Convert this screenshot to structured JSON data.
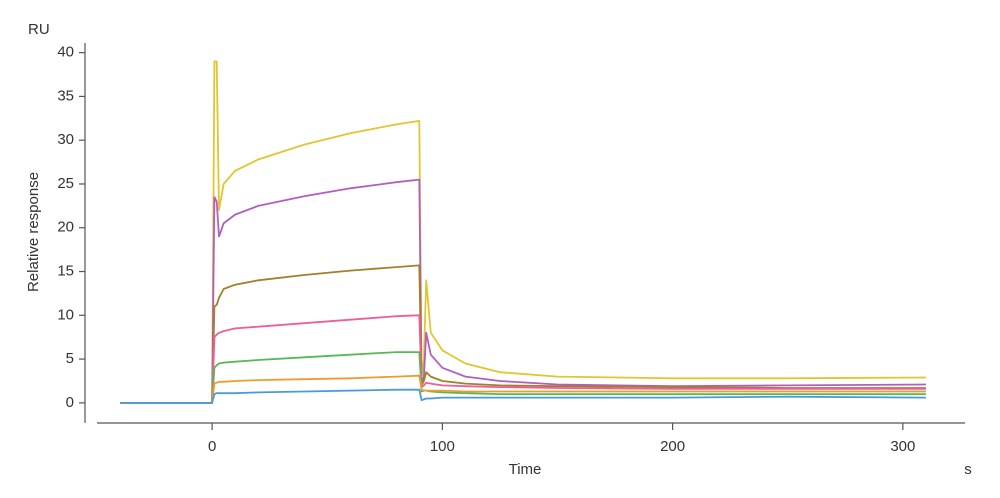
{
  "chart_data": {
    "type": "line",
    "y_unit": "RU",
    "ylabel": "Relative response",
    "xlabel": "Time",
    "x_unit": "s",
    "x": [
      -40,
      -20,
      0,
      1,
      2,
      3,
      5,
      10,
      20,
      40,
      60,
      80,
      90,
      91,
      92,
      93,
      95,
      100,
      110,
      125,
      150,
      200,
      250,
      310
    ],
    "series": [
      {
        "color": "#e3c530",
        "values": [
          0,
          0,
          0,
          39,
          39,
          22,
          25,
          26.5,
          27.8,
          29.5,
          30.8,
          31.8,
          32.2,
          3,
          5,
          14,
          8,
          6,
          4.5,
          3.5,
          3.0,
          2.8,
          2.8,
          2.9
        ]
      },
      {
        "color": "#b15fbf",
        "values": [
          0,
          0,
          0,
          23.5,
          23,
          19,
          20.5,
          21.5,
          22.5,
          23.6,
          24.5,
          25.2,
          25.5,
          2,
          3,
          8,
          5.5,
          4,
          3,
          2.5,
          2.1,
          1.9,
          2.0,
          2.1
        ]
      },
      {
        "color": "#a2802b",
        "values": [
          0,
          0,
          0,
          11,
          11.2,
          12,
          13,
          13.5,
          14,
          14.6,
          15.1,
          15.5,
          15.7,
          2,
          2.5,
          3.5,
          3,
          2.5,
          2.2,
          2.0,
          1.9,
          1.8,
          1.7,
          1.7
        ]
      },
      {
        "color": "#ec5f9a",
        "values": [
          0,
          0,
          0,
          7.5,
          7.8,
          8,
          8.2,
          8.5,
          8.7,
          9.1,
          9.5,
          9.9,
          10,
          1.8,
          2,
          2.3,
          2.2,
          2.0,
          1.9,
          1.8,
          1.7,
          1.6,
          1.6,
          1.6
        ]
      },
      {
        "color": "#56b856",
        "values": [
          0,
          0,
          0,
          4,
          4.3,
          4.5,
          4.6,
          4.7,
          4.9,
          5.2,
          5.5,
          5.8,
          5.8,
          1.3,
          1.4,
          1.4,
          1.3,
          1.2,
          1.1,
          1.0,
          1.0,
          1.0,
          1.0,
          1.0
        ]
      },
      {
        "color": "#f39a2e",
        "values": [
          0,
          0,
          0,
          2.2,
          2.3,
          2.4,
          2.4,
          2.5,
          2.6,
          2.7,
          2.8,
          3.0,
          3.1,
          1.5,
          1.4,
          1.4,
          1.4,
          1.4,
          1.3,
          1.3,
          1.3,
          1.3,
          1.3,
          1.3
        ]
      },
      {
        "color": "#4a9ad8",
        "values": [
          0,
          0,
          0,
          1.0,
          1.1,
          1.1,
          1.1,
          1.1,
          1.2,
          1.3,
          1.4,
          1.5,
          1.5,
          0.3,
          0.4,
          0.5,
          0.5,
          0.6,
          0.6,
          0.6,
          0.6,
          0.6,
          0.7,
          0.6
        ]
      }
    ],
    "xlim": [
      -50,
      327
    ],
    "xticks": [
      0,
      100,
      200,
      300
    ],
    "ylim": [
      -2.3,
      41.1
    ],
    "yticks": [
      0,
      5,
      10,
      15,
      20,
      25,
      30,
      35,
      40
    ]
  }
}
